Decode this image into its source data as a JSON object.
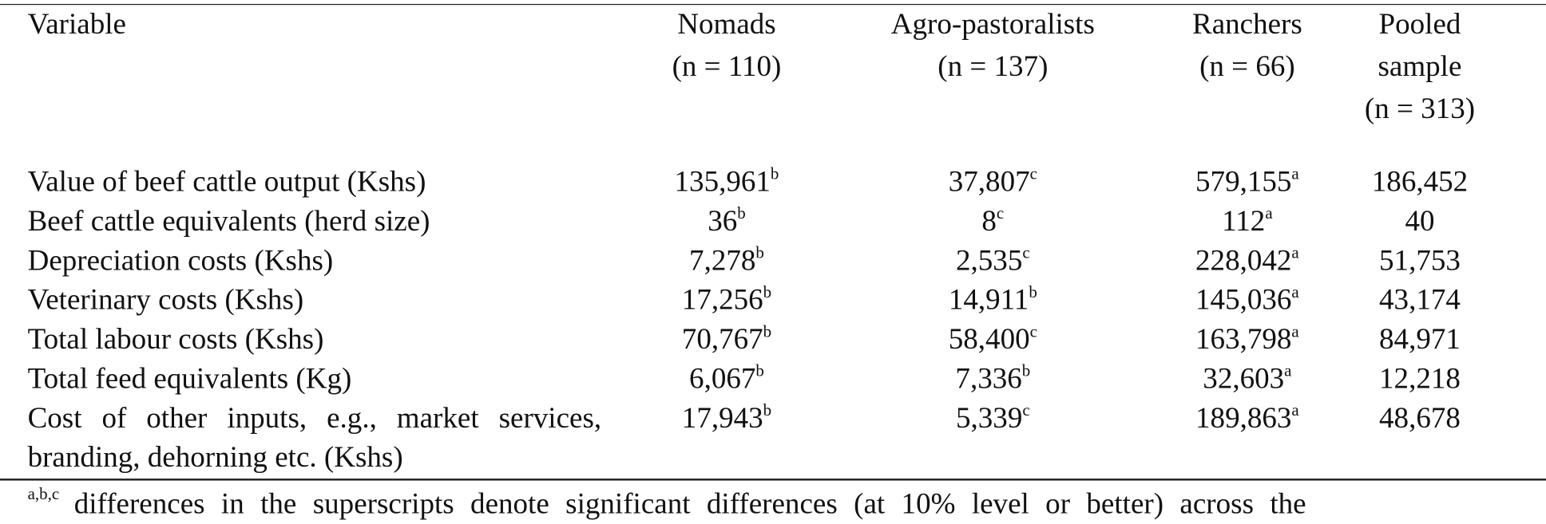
{
  "table": {
    "columns": [
      "Variable",
      "Nomads\n(n = 110)",
      "Agro-pastoralists\n(n = 137)",
      "Ranchers\n(n = 66)",
      "Pooled\nsample\n(n = 313)"
    ],
    "rows": [
      {
        "label": "Value of beef cattle output (Kshs)",
        "cells": [
          {
            "value": "135,961",
            "sup": "b"
          },
          {
            "value": "37,807",
            "sup": "c"
          },
          {
            "value": "579,155",
            "sup": "a"
          },
          {
            "value": "186,452"
          }
        ]
      },
      {
        "label": "Beef cattle equivalents (herd size)",
        "cells": [
          {
            "value": "36",
            "sup": "b"
          },
          {
            "value": "8",
            "sup": "c"
          },
          {
            "value": "112",
            "sup": "a"
          },
          {
            "value": "40"
          }
        ]
      },
      {
        "label": "Depreciation costs (Kshs)",
        "cells": [
          {
            "value": "7,278",
            "sup": "b"
          },
          {
            "value": "2,535",
            "sup": "c"
          },
          {
            "value": "228,042",
            "sup": "a"
          },
          {
            "value": "51,753"
          }
        ]
      },
      {
        "label": "Veterinary costs (Kshs)",
        "cells": [
          {
            "value": "17,256",
            "sup": "b"
          },
          {
            "value": "14,911",
            "sup": "b"
          },
          {
            "value": "145,036",
            "sup": "a"
          },
          {
            "value": "43,174"
          }
        ]
      },
      {
        "label": "Total labour costs (Kshs)",
        "cells": [
          {
            "value": "70,767",
            "sup": "b"
          },
          {
            "value": "58,400",
            "sup": "c"
          },
          {
            "value": "163,798",
            "sup": "a"
          },
          {
            "value": "84,971"
          }
        ]
      },
      {
        "label": "Total feed equivalents (Kg)",
        "cells": [
          {
            "value": "6,067",
            "sup": "b"
          },
          {
            "value": "7,336",
            "sup": "b"
          },
          {
            "value": "32,603",
            "sup": "a"
          },
          {
            "value": "12,218"
          }
        ]
      },
      {
        "label": "Cost of other inputs, e.g., market services, branding, dehorning etc. (Kshs)",
        "cells": [
          {
            "value": "17,943",
            "sup": "b"
          },
          {
            "value": "5,339",
            "sup": "c"
          },
          {
            "value": "189,863",
            "sup": "a"
          },
          {
            "value": "48,678"
          }
        ]
      }
    ],
    "footnote": {
      "sup": "a,b,c",
      "text": "differences in the superscripts denote significant differences (at 10% level or better) across the"
    }
  }
}
